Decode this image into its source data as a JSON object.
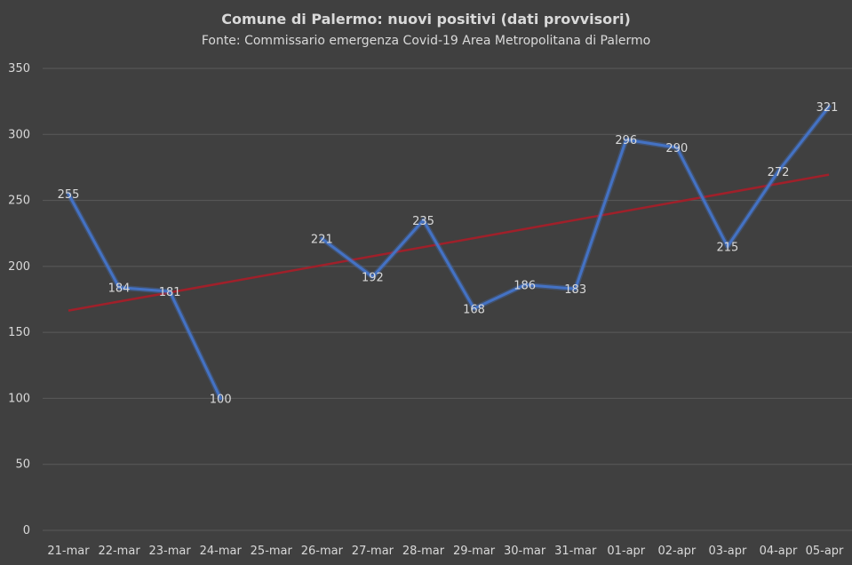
{
  "chart_data": {
    "type": "line",
    "title": "Comune di Palermo: nuovi positivi (dati provvisori)",
    "subtitle": "Fonte: Commissario  emergenza Covid-19 Area Metropolitana di Palermo",
    "categories": [
      "21-mar",
      "22-mar",
      "23-mar",
      "24-mar",
      "25-mar",
      "26-mar",
      "27-mar",
      "28-mar",
      "29-mar",
      "30-mar",
      "31-mar",
      "01-apr",
      "02-apr",
      "03-apr",
      "04-apr",
      "05-apr"
    ],
    "series": [
      {
        "values": [
          255,
          184,
          181,
          100,
          null,
          221,
          192,
          235,
          168,
          186,
          183,
          296,
          290,
          215,
          272,
          321
        ],
        "color": "#4472c4"
      }
    ],
    "trendline": {
      "start": 166.5,
      "end": 269.5,
      "color": "#a0202a"
    },
    "ylim": [
      0,
      350
    ],
    "yticks": [
      0,
      50,
      100,
      150,
      200,
      250,
      300,
      350
    ],
    "grid": true,
    "legend": "none",
    "data_labels": true
  }
}
